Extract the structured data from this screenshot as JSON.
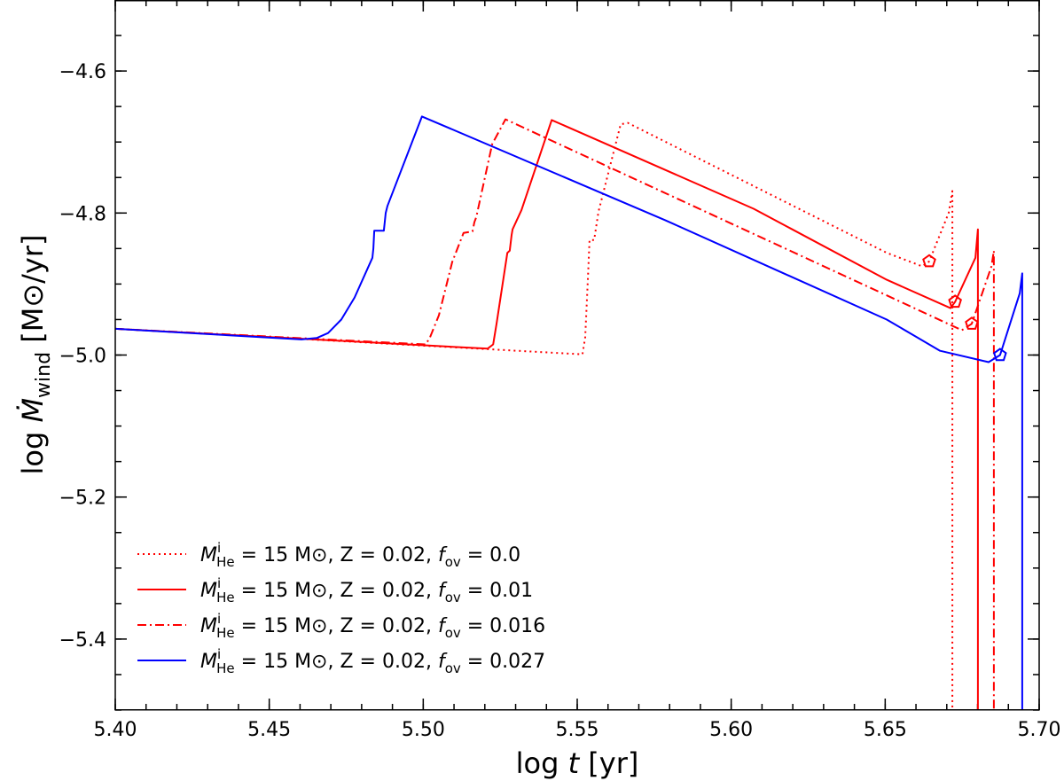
{
  "chart_data": {
    "type": "line",
    "xlabel": "log t [yr]",
    "ylabel": "log Ṁ_wind [M⊙/yr]",
    "xlim": [
      5.4,
      5.7
    ],
    "ylim": [
      -5.5,
      -4.5
    ],
    "x_ticks": [
      5.4,
      5.45,
      5.5,
      5.55,
      5.6,
      5.65,
      5.7
    ],
    "x_tick_labels": [
      "5.40",
      "5.45",
      "5.50",
      "5.55",
      "5.60",
      "5.65",
      "5.70"
    ],
    "y_ticks": [
      -4.6,
      -4.8,
      -5.0,
      -5.2,
      -5.4
    ],
    "y_tick_labels": [
      "−4.6",
      "−4.8",
      "−5.0",
      "−5.2",
      "−5.4"
    ],
    "x_minor_step": 0.01,
    "y_minor_step": 0.05,
    "ticks_direction": "in",
    "grid": false,
    "legend_placement": "lower-left",
    "legend": {
      "mass_symbol": "M",
      "mass_sup": "i",
      "mass_sub": "He",
      "mass_value": "15",
      "mass_unit": "M⊙",
      "Z_symbol": "Z",
      "Z_value": "0.02",
      "fov_symbol": "f",
      "fov_sub": "ov"
    },
    "series": [
      {
        "fov": "0.0",
        "color": "#ff0000",
        "style": "dotted",
        "x": [
          5.4,
          5.5517,
          5.5526,
          5.5535,
          5.554,
          5.5555,
          5.5569,
          5.5641,
          5.5664,
          5.6505,
          5.662,
          5.6643,
          5.6706,
          5.6718,
          5.6718
        ],
        "y": [
          -4.963,
          -4.999,
          -4.975,
          -4.888,
          -4.838,
          -4.838,
          -4.798,
          -4.675,
          -4.673,
          -4.856,
          -4.875,
          -4.868,
          -4.8,
          -4.769,
          -5.6
        ],
        "marker": {
          "x": 5.6643,
          "y": -4.868
        }
      },
      {
        "fov": "0.01",
        "color": "#ff0000",
        "style": "solid",
        "x": [
          5.4,
          5.5209,
          5.5227,
          5.5238,
          5.5273,
          5.5281,
          5.5287,
          5.529,
          5.5319,
          5.5417,
          5.6073,
          5.6505,
          5.6712,
          5.6727,
          5.6793,
          5.6801,
          5.6801
        ],
        "y": [
          -4.963,
          -4.991,
          -4.985,
          -4.956,
          -4.856,
          -4.853,
          -4.831,
          -4.823,
          -4.796,
          -4.669,
          -4.794,
          -4.894,
          -4.934,
          -4.925,
          -4.863,
          -4.823,
          -5.6
        ],
        "marker": {
          "x": 5.6727,
          "y": -4.925
        }
      },
      {
        "fov": "0.016",
        "color": "#ff0000",
        "style": "dashdot",
        "x": [
          5.4,
          5.5008,
          5.5022,
          5.5051,
          5.5094,
          5.5131,
          5.516,
          5.5166,
          5.5172,
          5.5224,
          5.5267,
          5.6505,
          5.6749,
          5.6781,
          5.6845,
          5.6853,
          5.6853
        ],
        "y": [
          -4.963,
          -4.985,
          -4.975,
          -4.944,
          -4.869,
          -4.828,
          -4.826,
          -4.813,
          -4.806,
          -4.703,
          -4.668,
          -4.916,
          -4.965,
          -4.956,
          -4.875,
          -4.853,
          -5.6
        ],
        "marker": {
          "x": 5.6781,
          "y": -4.956
        }
      },
      {
        "fov": "0.027",
        "color": "#0000ff",
        "style": "solid",
        "x": [
          5.4,
          5.4605,
          5.4654,
          5.4691,
          5.4734,
          5.4777,
          5.4835,
          5.4838,
          5.4841,
          5.4872,
          5.4878,
          5.4884,
          5.4996,
          5.5785,
          5.6505,
          5.6678,
          5.6836,
          5.6873,
          5.6937,
          5.6945,
          5.6945
        ],
        "y": [
          -4.963,
          -4.978,
          -4.976,
          -4.969,
          -4.95,
          -4.919,
          -4.863,
          -4.85,
          -4.825,
          -4.825,
          -4.8,
          -4.79,
          -4.664,
          -4.81,
          -4.95,
          -4.994,
          -5.01,
          -5.0,
          -4.913,
          -4.885,
          -5.6
        ],
        "marker": {
          "x": 5.6873,
          "y": -5.0
        }
      }
    ]
  }
}
